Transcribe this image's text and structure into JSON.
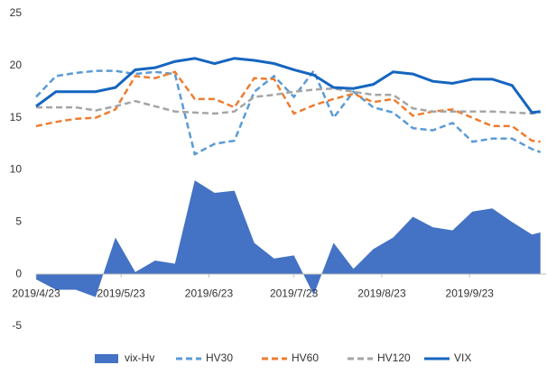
{
  "chart_data": {
    "type": "line",
    "x": [
      "2019/4/23",
      "2019/4/30",
      "2019/5/7",
      "2019/5/14",
      "2019/5/21",
      "2019/5/28",
      "2019/6/4",
      "2019/6/11",
      "2019/6/18",
      "2019/6/25",
      "2019/7/2",
      "2019/7/9",
      "2019/7/16",
      "2019/7/23",
      "2019/7/30",
      "2019/8/6",
      "2019/8/13",
      "2019/8/20",
      "2019/8/27",
      "2019/9/3",
      "2019/9/10",
      "2019/9/17",
      "2019/9/24",
      "2019/10/1",
      "2019/10/8",
      "2019/10/15",
      "2019/10/18"
    ],
    "series": [
      {
        "name": "vix-Hv",
        "type": "area",
        "color": "#4472c4",
        "values": [
          -0.5,
          -1.5,
          -1.5,
          -2.2,
          3.5,
          0.2,
          1.3,
          1.0,
          9.0,
          7.8,
          8.0,
          3.0,
          1.5,
          1.8,
          -2.0,
          3.0,
          0.5,
          2.4,
          3.5,
          5.5,
          4.5,
          4.2,
          6.0,
          6.3,
          5.0,
          3.8,
          4.0
        ]
      },
      {
        "name": "HV30",
        "type": "line",
        "dash": true,
        "color": "#5b9bd5",
        "values": [
          17.0,
          19.0,
          19.3,
          19.5,
          19.5,
          19.2,
          19.4,
          19.2,
          11.5,
          12.5,
          12.8,
          17.5,
          19.0,
          17.0,
          19.5,
          15.0,
          17.5,
          16.0,
          15.5,
          14.0,
          13.8,
          14.5,
          12.7,
          13.0,
          13.0,
          12.0,
          11.7
        ]
      },
      {
        "name": "HV60",
        "type": "line",
        "dash": true,
        "color": "#ed7d31",
        "values": [
          14.2,
          14.6,
          14.9,
          15.0,
          15.8,
          19.0,
          18.8,
          19.4,
          16.8,
          16.8,
          16.0,
          18.8,
          18.7,
          15.4,
          16.2,
          16.8,
          17.3,
          16.5,
          16.8,
          15.2,
          15.6,
          15.8,
          15.0,
          14.2,
          14.2,
          12.8,
          12.7
        ]
      },
      {
        "name": "HV120",
        "type": "line",
        "dash": true,
        "color": "#a5a5a5",
        "values": [
          16.0,
          16.0,
          16.0,
          15.7,
          16.1,
          16.6,
          16.1,
          15.6,
          15.5,
          15.4,
          15.6,
          17.0,
          17.2,
          17.5,
          17.7,
          17.8,
          17.5,
          17.2,
          17.2,
          15.9,
          15.6,
          15.6,
          15.6,
          15.6,
          15.5,
          15.4,
          15.5
        ]
      },
      {
        "name": "VIX",
        "type": "line",
        "dash": false,
        "color": "#1565c0",
        "values": [
          16.1,
          17.5,
          17.5,
          17.5,
          17.9,
          19.6,
          19.8,
          20.4,
          20.7,
          20.2,
          20.7,
          20.5,
          20.2,
          19.6,
          19.1,
          17.9,
          17.8,
          18.2,
          19.4,
          19.2,
          18.5,
          18.3,
          18.7,
          18.7,
          18.1,
          15.5,
          15.6
        ]
      }
    ],
    "xlim": [
      "2019/4/23",
      "2019/10/20"
    ],
    "xticks": [
      "2019/4/23",
      "2019/5/23",
      "2019/6/23",
      "2019/7/23",
      "2019/8/23",
      "2019/9/23"
    ],
    "ylim": [
      -5,
      25
    ],
    "yticks": [
      -5,
      0,
      5,
      10,
      15,
      20,
      25
    ],
    "grid": false,
    "legend": "bottom"
  }
}
